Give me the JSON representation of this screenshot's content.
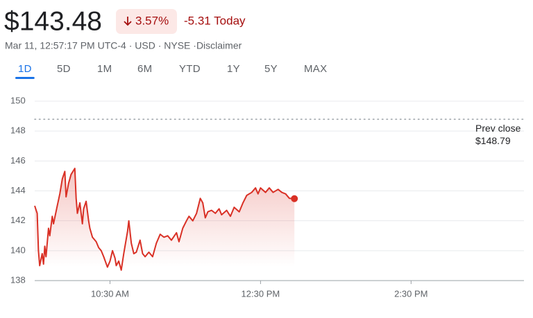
{
  "header": {
    "price": "$143.48",
    "change_percent": "3.57%",
    "change_today": "-5.31 Today",
    "info": "Mar 11, 12:57:17 PM UTC-4 · USD · NYSE · ",
    "disclaimer": "Disclaimer"
  },
  "tabs": [
    "1D",
    "5D",
    "1M",
    "6M",
    "YTD",
    "1Y",
    "5Y",
    "MAX"
  ],
  "chart_data": {
    "type": "line",
    "color": "#d93025",
    "x": [
      570,
      572,
      573,
      574,
      576,
      577,
      578,
      579,
      581,
      582,
      584,
      585,
      588,
      590,
      592,
      594,
      595,
      597,
      599,
      602,
      603,
      604,
      606,
      608,
      609,
      611,
      613,
      614,
      616,
      619,
      621,
      623,
      625,
      628,
      630,
      632,
      634,
      635,
      637,
      639,
      641,
      644,
      645,
      647,
      649,
      651,
      654,
      656,
      658,
      661,
      664,
      667,
      670,
      673,
      676,
      679,
      683,
      685,
      688,
      691,
      693,
      696,
      699,
      702,
      704,
      706,
      708,
      711,
      714,
      717,
      719,
      723,
      726,
      729,
      733,
      736,
      739,
      743,
      746,
      748,
      750,
      754,
      757,
      760,
      764,
      767,
      770,
      773,
      777
    ],
    "values": [
      143.0,
      142.5,
      140.0,
      139.0,
      139.8,
      139.1,
      140.3,
      139.6,
      141.5,
      141.0,
      142.3,
      141.8,
      143.0,
      143.8,
      144.8,
      145.3,
      143.6,
      144.5,
      145.1,
      145.5,
      143.5,
      142.5,
      143.2,
      141.8,
      142.8,
      143.3,
      142.0,
      141.5,
      140.9,
      140.6,
      140.2,
      140.0,
      139.6,
      138.9,
      139.3,
      140.0,
      139.5,
      139.0,
      139.3,
      138.7,
      139.8,
      141.3,
      142.0,
      140.5,
      139.8,
      139.9,
      140.7,
      139.8,
      139.6,
      139.9,
      139.6,
      140.5,
      141.1,
      140.9,
      141.0,
      140.7,
      141.2,
      140.6,
      141.5,
      142.0,
      142.3,
      142.0,
      142.5,
      143.5,
      143.2,
      142.2,
      142.6,
      142.7,
      142.5,
      142.8,
      142.4,
      142.7,
      142.3,
      142.9,
      142.6,
      143.2,
      143.7,
      143.9,
      144.2,
      143.8,
      144.2,
      143.9,
      144.2,
      143.9,
      144.1,
      143.9,
      143.8,
      143.5,
      143.48
    ],
    "xlim": [
      570,
      960
    ],
    "xticks": [
      {
        "value": 630,
        "label": "10:30 AM"
      },
      {
        "value": 750,
        "label": "12:30 PM"
      },
      {
        "value": 870,
        "label": "2:30 PM"
      }
    ],
    "ylim": [
      138,
      150
    ],
    "yticks": [
      138,
      140,
      142,
      144,
      146,
      148,
      150
    ],
    "grid": true,
    "prev_close": {
      "value": 148.79,
      "label": "$148.79"
    },
    "prev_close_text": "Prev close"
  }
}
